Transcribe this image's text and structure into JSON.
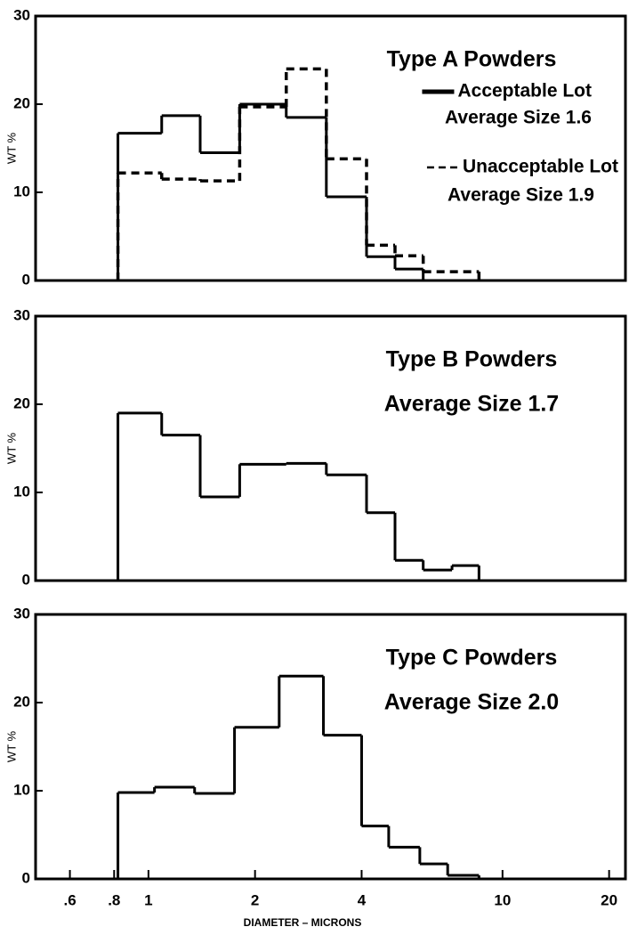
{
  "chart_data": [
    {
      "type": "histogram",
      "title": "Type A Powders",
      "ylabel": "WT %",
      "xscale": "log",
      "xlim": [
        0.48,
        22.5
      ],
      "ylim": [
        0,
        30
      ],
      "yticks": [
        0,
        10,
        20,
        30
      ],
      "bins": [
        0.82,
        1.09,
        1.4,
        1.81,
        2.45,
        3.18,
        4.13,
        4.97,
        5.97,
        8.58
      ],
      "series": [
        {
          "name": "Acceptable Lot",
          "color": "#000000",
          "line_style": "solid",
          "values": [
            16.7,
            18.7,
            14.5,
            20,
            18.5,
            9.5,
            2.7,
            1.3,
            0
          ]
        },
        {
          "name": "Unacceptable Lot",
          "color": "#000000",
          "line_style": "dashed",
          "values": [
            12.2,
            11.5,
            11.3,
            19.7,
            24,
            13.8,
            4,
            2.8,
            1
          ]
        }
      ],
      "annotations": [
        "Average Size 1.6",
        "Average Size 1.9"
      ]
    },
    {
      "type": "histogram",
      "title": "Type B Powders",
      "subtitle": "Average Size 1.7",
      "ylabel": "WT %",
      "xscale": "log",
      "xlim": [
        0.48,
        22.5
      ],
      "ylim": [
        0,
        30
      ],
      "yticks": [
        0,
        10,
        20,
        30
      ],
      "bins": [
        0.82,
        1.09,
        1.4,
        1.81,
        2.45,
        3.18,
        4.13,
        4.97,
        5.97,
        7.2,
        8.58
      ],
      "series": [
        {
          "color": "#000000",
          "line_style": "solid",
          "values": [
            19,
            16.5,
            9.5,
            13.2,
            13.3,
            12,
            7.7,
            2.3,
            1.2,
            1.7
          ]
        }
      ]
    },
    {
      "type": "histogram",
      "title": "Type C Powders",
      "subtitle": "Average Size 2.0",
      "ylabel": "WT %",
      "xlabel": "DIAMETER – MICRONS",
      "xscale": "log",
      "xlim": [
        0.48,
        22.5
      ],
      "ylim": [
        0,
        30
      ],
      "yticks": [
        0,
        10,
        20,
        30
      ],
      "xticks": [
        {
          "value": 0.6,
          "label": ".6"
        },
        {
          "value": 0.8,
          "label": ".8"
        },
        1,
        2,
        4,
        10,
        20
      ],
      "bins": [
        0.82,
        1.04,
        1.35,
        1.75,
        2.34,
        3.12,
        4,
        4.77,
        5.84,
        7,
        8.58
      ],
      "series": [
        {
          "color": "#000000",
          "line_style": "solid",
          "values": [
            9.8,
            10.4,
            9.7,
            17.2,
            23,
            16.3,
            6,
            3.6,
            1.7,
            0.4
          ]
        }
      ]
    }
  ]
}
